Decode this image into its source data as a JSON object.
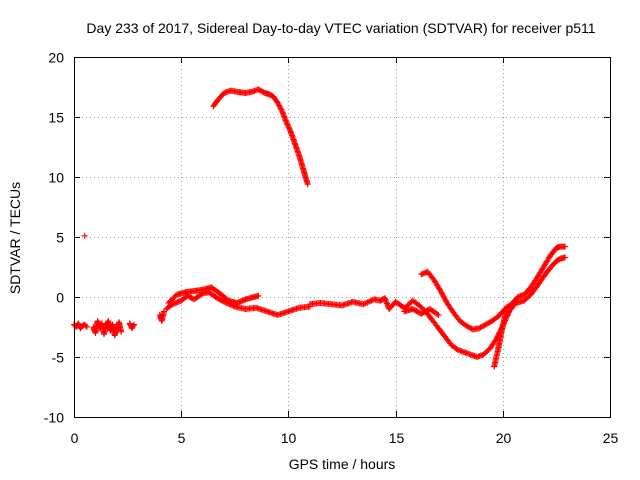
{
  "chart_data": {
    "type": "scatter",
    "title": "Day 233 of 2017, Sidereal Day-to-day VTEC variation (SDTVAR) for receiver p511",
    "xlabel": "GPS time / hours",
    "ylabel": "SDTVAR / TECUs",
    "xlim": [
      0,
      25
    ],
    "ylim": [
      -10,
      20
    ],
    "xticks": [
      0,
      5,
      10,
      15,
      20,
      25
    ],
    "yticks": [
      -10,
      -5,
      0,
      5,
      10,
      15,
      20
    ],
    "xtick_labels": [
      "0",
      "5",
      "10",
      "15",
      "20",
      "25"
    ],
    "ytick_labels": [
      "-10",
      "-5",
      "0",
      "5",
      "10",
      "15",
      "20"
    ],
    "grid": true,
    "marker": "+",
    "color": "#ff0000",
    "series": [
      {
        "name": "isolated point",
        "points": [
          [
            0.5,
            5.1
          ]
        ]
      },
      {
        "name": "segment 0-0.6h",
        "points": [
          [
            0.0,
            -2.3
          ],
          [
            0.1,
            -2.5
          ],
          [
            0.2,
            -2.2
          ],
          [
            0.3,
            -2.6
          ],
          [
            0.4,
            -2.4
          ],
          [
            0.5,
            -2.3
          ],
          [
            0.6,
            -2.5
          ]
        ]
      },
      {
        "name": "segment 0.9-2.2h",
        "points": [
          [
            0.9,
            -2.5
          ],
          [
            1.0,
            -3.0
          ],
          [
            1.1,
            -2.0
          ],
          [
            1.2,
            -2.6
          ],
          [
            1.3,
            -2.2
          ],
          [
            1.4,
            -3.1
          ],
          [
            1.5,
            -2.4
          ],
          [
            1.6,
            -2.0
          ],
          [
            1.7,
            -2.8
          ],
          [
            1.8,
            -2.3
          ],
          [
            1.9,
            -3.2
          ],
          [
            2.0,
            -2.6
          ],
          [
            2.1,
            -2.1
          ],
          [
            2.2,
            -2.9
          ]
        ]
      },
      {
        "name": "segment 2.6-2.8h",
        "points": [
          [
            2.6,
            -2.2
          ],
          [
            2.7,
            -2.6
          ],
          [
            2.8,
            -2.3
          ]
        ]
      },
      {
        "name": "segment 4.0-4.2h",
        "points": [
          [
            4.0,
            -1.5
          ],
          [
            4.1,
            -2.0
          ],
          [
            4.2,
            -1.2
          ]
        ]
      },
      {
        "name": "segment 4.3-11h",
        "points": [
          [
            4.3,
            -1.0
          ],
          [
            4.6,
            -0.6
          ],
          [
            5.0,
            -0.3
          ],
          [
            5.3,
            0.1
          ],
          [
            5.6,
            -0.2
          ],
          [
            6.0,
            0.3
          ],
          [
            6.3,
            0.4
          ],
          [
            6.6,
            0.0
          ],
          [
            7.0,
            -0.4
          ],
          [
            7.5,
            -0.8
          ],
          [
            8.0,
            -1.0
          ],
          [
            8.5,
            -0.9
          ],
          [
            9.0,
            -1.2
          ],
          [
            9.5,
            -1.5
          ],
          [
            10.0,
            -1.2
          ],
          [
            10.5,
            -0.9
          ],
          [
            11.0,
            -0.8
          ]
        ]
      },
      {
        "name": "segment 4.3-8.5h upper",
        "points": [
          [
            4.4,
            -0.5
          ],
          [
            4.8,
            0.2
          ],
          [
            5.2,
            0.4
          ],
          [
            5.6,
            0.5
          ],
          [
            6.0,
            0.6
          ],
          [
            6.4,
            0.8
          ],
          [
            6.8,
            0.3
          ],
          [
            7.2,
            -0.3
          ],
          [
            7.6,
            -0.5
          ],
          [
            8.0,
            -0.2
          ],
          [
            8.4,
            0.0
          ],
          [
            8.6,
            0.1
          ]
        ]
      },
      {
        "name": "segment 11-15.4h",
        "points": [
          [
            11.0,
            -0.6
          ],
          [
            11.5,
            -0.5
          ],
          [
            12.0,
            -0.6
          ],
          [
            12.5,
            -0.7
          ],
          [
            13.0,
            -0.4
          ],
          [
            13.5,
            -0.6
          ],
          [
            14.0,
            -0.2
          ],
          [
            14.3,
            -0.3
          ],
          [
            14.5,
            -0.1
          ],
          [
            14.7,
            -1.0
          ],
          [
            15.0,
            -0.4
          ],
          [
            15.4,
            -0.9
          ]
        ]
      },
      {
        "name": "segment 15.4-17h",
        "points": [
          [
            15.4,
            -1.2
          ],
          [
            15.8,
            -1.0
          ],
          [
            16.2,
            -1.4
          ],
          [
            16.6,
            -1.0
          ],
          [
            17.0,
            -1.5
          ]
        ]
      },
      {
        "name": "segment 6.5-10.9h",
        "points": [
          [
            6.5,
            15.9
          ],
          [
            6.7,
            16.4
          ],
          [
            7.0,
            17.0
          ],
          [
            7.3,
            17.2
          ],
          [
            7.6,
            17.1
          ],
          [
            8.0,
            17.0
          ],
          [
            8.3,
            17.1
          ],
          [
            8.6,
            17.3
          ],
          [
            8.9,
            17.0
          ],
          [
            9.1,
            16.9
          ],
          [
            9.3,
            16.7
          ],
          [
            9.5,
            16.2
          ],
          [
            9.7,
            15.5
          ],
          [
            9.9,
            14.6
          ],
          [
            10.1,
            13.8
          ],
          [
            10.3,
            12.8
          ],
          [
            10.5,
            11.8
          ],
          [
            10.7,
            10.6
          ],
          [
            10.9,
            9.4
          ]
        ]
      },
      {
        "name": "segment 16.2-22.9h",
        "points": [
          [
            16.2,
            1.9
          ],
          [
            16.5,
            2.1
          ],
          [
            16.8,
            1.4
          ],
          [
            17.1,
            0.5
          ],
          [
            17.4,
            -0.5
          ],
          [
            17.7,
            -1.3
          ],
          [
            18.0,
            -2.0
          ],
          [
            18.3,
            -2.4
          ],
          [
            18.6,
            -2.7
          ],
          [
            18.9,
            -2.6
          ],
          [
            19.2,
            -2.3
          ],
          [
            19.5,
            -2.0
          ],
          [
            19.8,
            -1.6
          ],
          [
            20.1,
            -1.0
          ],
          [
            20.4,
            -0.6
          ],
          [
            20.7,
            0.0
          ],
          [
            21.0,
            0.2
          ],
          [
            21.3,
            0.8
          ],
          [
            21.6,
            1.6
          ],
          [
            21.9,
            2.5
          ],
          [
            22.2,
            3.4
          ],
          [
            22.5,
            4.1
          ],
          [
            22.7,
            4.2
          ],
          [
            22.9,
            4.2
          ]
        ]
      },
      {
        "name": "segment 15.5-22.9h lower",
        "points": [
          [
            15.5,
            -0.8
          ],
          [
            15.8,
            -0.3
          ],
          [
            16.1,
            -0.7
          ],
          [
            16.4,
            -1.2
          ],
          [
            16.7,
            -1.9
          ],
          [
            17.0,
            -2.6
          ],
          [
            17.3,
            -3.3
          ],
          [
            17.6,
            -4.0
          ],
          [
            17.9,
            -4.4
          ],
          [
            18.2,
            -4.6
          ],
          [
            18.5,
            -4.8
          ],
          [
            18.8,
            -5.0
          ],
          [
            19.1,
            -4.8
          ],
          [
            19.4,
            -4.3
          ],
          [
            19.7,
            -3.5
          ],
          [
            20.0,
            -2.4
          ],
          [
            20.3,
            -1.2
          ],
          [
            20.6,
            -0.5
          ],
          [
            21.0,
            -0.3
          ],
          [
            21.3,
            0.2
          ],
          [
            21.6,
            0.9
          ],
          [
            21.9,
            1.7
          ],
          [
            22.2,
            2.4
          ],
          [
            22.5,
            3.0
          ],
          [
            22.7,
            3.2
          ],
          [
            22.9,
            3.3
          ]
        ]
      },
      {
        "name": "segment 19.6-20.2h",
        "points": [
          [
            19.6,
            -5.8
          ],
          [
            19.7,
            -5.0
          ],
          [
            19.8,
            -4.2
          ],
          [
            19.9,
            -3.3
          ],
          [
            20.0,
            -2.4
          ],
          [
            20.1,
            -1.6
          ],
          [
            20.2,
            -0.8
          ]
        ]
      }
    ]
  }
}
